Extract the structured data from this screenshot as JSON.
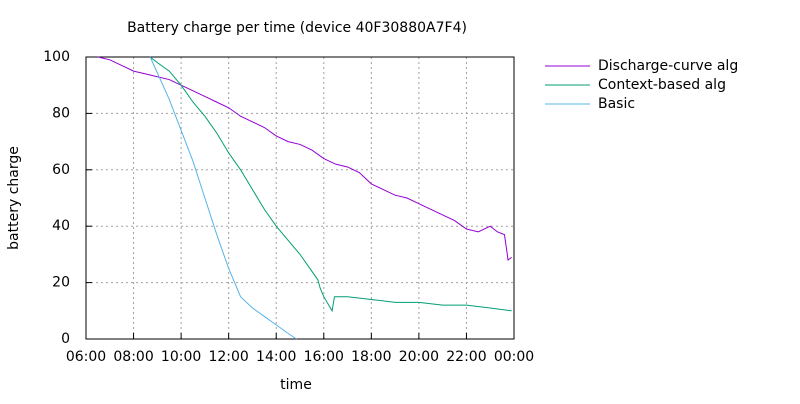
{
  "chart_data": {
    "type": "line",
    "title": "Battery charge per time (device 40F30880A7F4)",
    "x_label": "time",
    "y_label": "battery charge",
    "xlim": [
      6,
      24
    ],
    "ylim": [
      0,
      100
    ],
    "xticks": [
      {
        "value": 6,
        "label": "06:00"
      },
      {
        "value": 8,
        "label": "08:00"
      },
      {
        "value": 10,
        "label": "10:00"
      },
      {
        "value": 12,
        "label": "12:00"
      },
      {
        "value": 14,
        "label": "14:00"
      },
      {
        "value": 16,
        "label": "16:00"
      },
      {
        "value": 18,
        "label": "18:00"
      },
      {
        "value": 20,
        "label": "20:00"
      },
      {
        "value": 22,
        "label": "22:00"
      },
      {
        "value": 24,
        "label": "00:00"
      }
    ],
    "yticks": [
      0,
      20,
      40,
      60,
      80,
      100
    ],
    "grid": true,
    "legend": "right",
    "series": [
      {
        "name": "Discharge-curve alg",
        "color": "#9400d3",
        "x": [
          6.5,
          7,
          7.5,
          8,
          8.5,
          9,
          9.5,
          10,
          10.5,
          11,
          11.5,
          12,
          12.5,
          13,
          13.5,
          14,
          14.5,
          15,
          15.5,
          16,
          16.5,
          17,
          17.5,
          18,
          18.5,
          19,
          19.5,
          20,
          20.5,
          21,
          21.5,
          22,
          22.5,
          23,
          23.3,
          23.6,
          23.75,
          23.9
        ],
        "values": [
          100,
          99,
          97,
          95,
          94,
          93,
          92,
          90,
          88,
          86,
          84,
          82,
          79,
          77,
          75,
          72,
          70,
          69,
          67,
          64,
          62,
          61,
          59,
          55,
          53,
          51,
          50,
          48,
          46,
          44,
          42,
          39,
          38,
          40,
          38,
          37,
          28,
          29
        ]
      },
      {
        "name": "Context-based alg",
        "color": "#009e73",
        "x": [
          8.7,
          9,
          9.5,
          10,
          10.5,
          11,
          11.5,
          12,
          12.5,
          13,
          13.5,
          14,
          14.5,
          15,
          15.5,
          15.75,
          15.85,
          16,
          16.35,
          16.45,
          17,
          18,
          19,
          20,
          21,
          22,
          23,
          23.9
        ],
        "values": [
          100,
          98,
          95,
          90,
          84,
          79,
          73,
          66,
          60,
          53,
          46,
          40,
          35,
          30,
          24,
          21,
          18,
          15,
          10,
          15,
          15,
          14,
          13,
          13,
          12,
          12,
          11,
          10
        ]
      },
      {
        "name": "Basic",
        "color": "#56b4e9",
        "x": [
          8.7,
          9.5,
          10,
          10.5,
          11,
          11.5,
          12,
          12.5,
          13,
          13.5,
          14,
          14.5,
          14.85
        ],
        "values": [
          100,
          85,
          74,
          63,
          50,
          37,
          25,
          15,
          11,
          8,
          5,
          2,
          0
        ]
      }
    ]
  }
}
